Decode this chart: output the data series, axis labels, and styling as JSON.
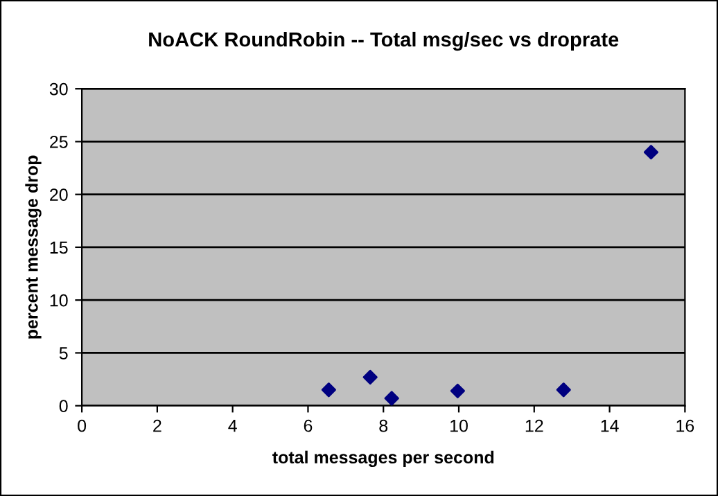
{
  "chart_data": {
    "type": "scatter",
    "title": "NoACK RoundRobin -- Total msg/sec vs droprate",
    "xlabel": "total messages per second",
    "ylabel": "percent message drop",
    "x": [
      6.55,
      7.65,
      8.22,
      9.97,
      12.78,
      15.1
    ],
    "series": [
      {
        "color": "#000080",
        "values": [
          1.5,
          2.7,
          0.7,
          1.4,
          1.5,
          24
        ]
      }
    ],
    "xlim": [
      0,
      16
    ],
    "xticks": [
      0,
      2,
      4,
      6,
      8,
      10,
      12,
      14,
      16
    ],
    "ylim": [
      0,
      30
    ],
    "yticks": [
      0,
      5,
      10,
      15,
      20,
      25,
      30
    ],
    "grid": "y",
    "marker": "diamond"
  }
}
